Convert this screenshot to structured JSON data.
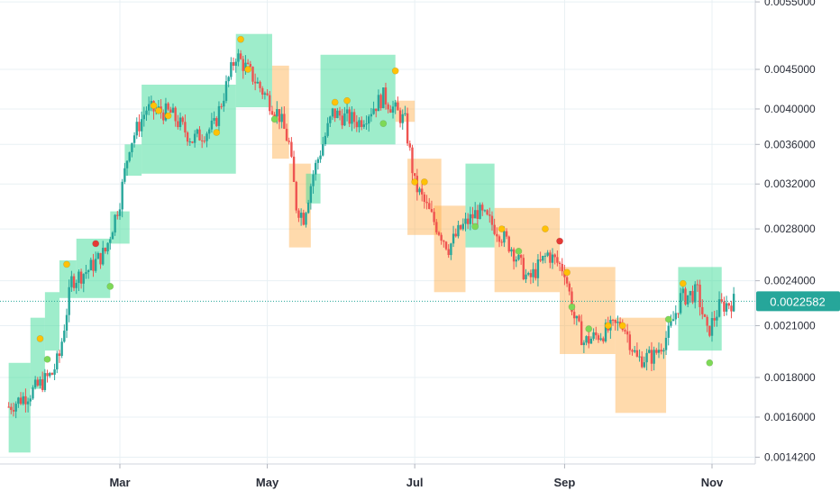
{
  "colors": {
    "up": "#26a69a",
    "down": "#ef5350",
    "green_box": "#3ddc97",
    "orange_box": "#ffad46",
    "grid": "#e8f0f4",
    "axis_text": "#2a2e39",
    "price_line": "#26a69a",
    "dot_yellow": "#ffc107",
    "dot_green": "#7ed957",
    "dot_red": "#e53935"
  },
  "chart_data": {
    "type": "candlestick",
    "x_axis": {
      "type": "date",
      "range": [
        "2020-01-15",
        "2020-11-10"
      ],
      "tick_labels": [
        {
          "label": "Mar",
          "date": "2020-03-01"
        },
        {
          "label": "May",
          "date": "2020-05-01"
        },
        {
          "label": "Jul",
          "date": "2020-07-01"
        },
        {
          "label": "Sep",
          "date": "2020-09-01"
        },
        {
          "label": "Nov",
          "date": "2020-11-01"
        }
      ]
    },
    "y_axis": {
      "scale": "log",
      "range": [
        0.00136,
        0.0055
      ],
      "tick_labels": [
        "0.0055000",
        "0.0045000",
        "0.0040000",
        "0.0036000",
        "0.0032000",
        "0.0028000",
        "0.0024000",
        "0.0021000",
        "0.0018000",
        "0.0016000",
        "0.0014200"
      ],
      "tick_values": [
        0.0055,
        0.0045,
        0.004,
        0.0036,
        0.0032,
        0.0028,
        0.0024,
        0.0021,
        0.0018,
        0.0016,
        0.00142
      ],
      "position": "right"
    },
    "grid": true,
    "last_price": {
      "label": "0.0022582",
      "value": 0.0022582
    },
    "price_path": [
      [
        "2020-01-15",
        0.00165
      ],
      [
        "2020-01-24",
        0.00172
      ],
      [
        "2020-02-02",
        0.00182
      ],
      [
        "2020-02-05",
        0.00192
      ],
      [
        "2020-02-10",
        0.0024
      ],
      [
        "2020-02-17",
        0.00248
      ],
      [
        "2020-02-24",
        0.00262
      ],
      [
        "2020-03-01",
        0.00305
      ],
      [
        "2020-03-05",
        0.0036
      ],
      [
        "2020-03-12",
        0.004
      ],
      [
        "2020-03-22",
        0.00395
      ],
      [
        "2020-03-31",
        0.00365
      ],
      [
        "2020-04-09",
        0.0038
      ],
      [
        "2020-04-18",
        0.0047
      ],
      [
        "2020-04-25",
        0.0044
      ],
      [
        "2020-05-06",
        0.00392
      ],
      [
        "2020-05-10",
        0.0036
      ],
      [
        "2020-05-13",
        0.003
      ],
      [
        "2020-05-16",
        0.0029
      ],
      [
        "2020-05-20",
        0.0033
      ],
      [
        "2020-05-28",
        0.00395
      ],
      [
        "2020-06-08",
        0.00385
      ],
      [
        "2020-06-18",
        0.00415
      ],
      [
        "2020-06-27",
        0.00385
      ],
      [
        "2020-07-01",
        0.0032
      ],
      [
        "2020-07-08",
        0.0029
      ],
      [
        "2020-07-15",
        0.00265
      ],
      [
        "2020-07-20",
        0.0028
      ],
      [
        "2020-07-27",
        0.00295
      ],
      [
        "2020-08-03",
        0.00282
      ],
      [
        "2020-08-10",
        0.00265
      ],
      [
        "2020-08-17",
        0.0024
      ],
      [
        "2020-08-25",
        0.0026
      ],
      [
        "2020-09-01",
        0.00248
      ],
      [
        "2020-09-05",
        0.00215
      ],
      [
        "2020-09-09",
        0.002
      ],
      [
        "2020-09-16",
        0.00205
      ],
      [
        "2020-09-25",
        0.00212
      ],
      [
        "2020-10-01",
        0.0019
      ],
      [
        "2020-10-08",
        0.00192
      ],
      [
        "2020-10-14",
        0.00205
      ],
      [
        "2020-10-19",
        0.00228
      ],
      [
        "2020-10-26",
        0.00232
      ],
      [
        "2020-10-30",
        0.00205
      ],
      [
        "2020-11-04",
        0.00222
      ],
      [
        "2020-11-10",
        0.0022582
      ]
    ],
    "zones": [
      {
        "kind": "green",
        "start": "2020-01-15",
        "end": "2020-01-24",
        "high": 0.00188,
        "low": 0.00144
      },
      {
        "kind": "green",
        "start": "2020-01-24",
        "end": "2020-01-30",
        "high": 0.00215,
        "low": 0.00174
      },
      {
        "kind": "green",
        "start": "2020-01-30",
        "end": "2020-02-05",
        "high": 0.00232,
        "low": 0.00195
      },
      {
        "kind": "green",
        "start": "2020-02-05",
        "end": "2020-02-12",
        "high": 0.00255,
        "low": 0.00228
      },
      {
        "kind": "green",
        "start": "2020-02-12",
        "end": "2020-02-26",
        "high": 0.00272,
        "low": 0.00228
      },
      {
        "kind": "green",
        "start": "2020-02-26",
        "end": "2020-03-05",
        "high": 0.00295,
        "low": 0.00268
      },
      {
        "kind": "green",
        "start": "2020-03-03",
        "end": "2020-03-10",
        "high": 0.0036,
        "low": 0.00328
      },
      {
        "kind": "green",
        "start": "2020-03-10",
        "end": "2020-04-18",
        "high": 0.0043,
        "low": 0.0033
      },
      {
        "kind": "green",
        "start": "2020-04-18",
        "end": "2020-05-03",
        "high": 0.005,
        "low": 0.00402
      },
      {
        "kind": "orange",
        "start": "2020-05-03",
        "end": "2020-05-10",
        "high": 0.00455,
        "low": 0.00345
      },
      {
        "kind": "orange",
        "start": "2020-05-10",
        "end": "2020-05-19",
        "high": 0.0034,
        "low": 0.00265
      },
      {
        "kind": "green",
        "start": "2020-05-17",
        "end": "2020-05-23",
        "high": 0.0033,
        "low": 0.00302
      },
      {
        "kind": "green",
        "start": "2020-05-23",
        "end": "2020-06-23",
        "high": 0.0047,
        "low": 0.0036
      },
      {
        "kind": "orange",
        "start": "2020-06-23",
        "end": "2020-07-01",
        "high": 0.0041,
        "low": 0.00385
      },
      {
        "kind": "orange",
        "start": "2020-06-28",
        "end": "2020-07-12",
        "high": 0.00345,
        "low": 0.00275
      },
      {
        "kind": "orange",
        "start": "2020-07-09",
        "end": "2020-07-22",
        "high": 0.003,
        "low": 0.00232
      },
      {
        "kind": "green",
        "start": "2020-07-22",
        "end": "2020-08-03",
        "high": 0.0034,
        "low": 0.00265
      },
      {
        "kind": "orange",
        "start": "2020-08-03",
        "end": "2020-08-30",
        "high": 0.00298,
        "low": 0.00232
      },
      {
        "kind": "orange",
        "start": "2020-08-30",
        "end": "2020-09-22",
        "high": 0.0025,
        "low": 0.00193
      },
      {
        "kind": "orange",
        "start": "2020-09-22",
        "end": "2020-10-13",
        "high": 0.00215,
        "low": 0.00162
      },
      {
        "kind": "green",
        "start": "2020-10-18",
        "end": "2020-11-05",
        "high": 0.0025,
        "low": 0.00195
      }
    ],
    "markers": [
      {
        "date": "2020-01-28",
        "value": 0.00202,
        "color": "yellow"
      },
      {
        "date": "2020-01-31",
        "value": 0.0019,
        "color": "green"
      },
      {
        "date": "2020-02-08",
        "value": 0.00252,
        "color": "yellow"
      },
      {
        "date": "2020-02-20",
        "value": 0.00268,
        "color": "red"
      },
      {
        "date": "2020-02-26",
        "value": 0.00236,
        "color": "green"
      },
      {
        "date": "2020-03-15",
        "value": 0.00404,
        "color": "yellow"
      },
      {
        "date": "2020-03-17",
        "value": 0.00398,
        "color": "yellow"
      },
      {
        "date": "2020-03-21",
        "value": 0.00392,
        "color": "yellow"
      },
      {
        "date": "2020-04-10",
        "value": 0.00373,
        "color": "yellow"
      },
      {
        "date": "2020-04-20",
        "value": 0.00492,
        "color": "yellow"
      },
      {
        "date": "2020-04-23",
        "value": 0.0045,
        "color": "yellow"
      },
      {
        "date": "2020-05-04",
        "value": 0.00388,
        "color": "green"
      },
      {
        "date": "2020-05-29",
        "value": 0.00408,
        "color": "yellow"
      },
      {
        "date": "2020-06-03",
        "value": 0.0041,
        "color": "yellow"
      },
      {
        "date": "2020-06-18",
        "value": 0.00383,
        "color": "green"
      },
      {
        "date": "2020-06-23",
        "value": 0.00448,
        "color": "yellow"
      },
      {
        "date": "2020-07-01",
        "value": 0.00322,
        "color": "yellow"
      },
      {
        "date": "2020-07-05",
        "value": 0.00322,
        "color": "yellow"
      },
      {
        "date": "2020-07-26",
        "value": 0.00282,
        "color": "green"
      },
      {
        "date": "2020-08-06",
        "value": 0.0028,
        "color": "yellow"
      },
      {
        "date": "2020-08-13",
        "value": 0.00262,
        "color": "green"
      },
      {
        "date": "2020-08-24",
        "value": 0.0028,
        "color": "yellow"
      },
      {
        "date": "2020-08-30",
        "value": 0.0027,
        "color": "red"
      },
      {
        "date": "2020-09-02",
        "value": 0.00246,
        "color": "yellow"
      },
      {
        "date": "2020-09-04",
        "value": 0.00222,
        "color": "green"
      },
      {
        "date": "2020-09-11",
        "value": 0.00208,
        "color": "green"
      },
      {
        "date": "2020-09-19",
        "value": 0.0021,
        "color": "yellow"
      },
      {
        "date": "2020-09-25",
        "value": 0.0021,
        "color": "yellow"
      },
      {
        "date": "2020-10-14",
        "value": 0.00214,
        "color": "green"
      },
      {
        "date": "2020-10-20",
        "value": 0.00238,
        "color": "yellow"
      },
      {
        "date": "2020-10-31",
        "value": 0.00188,
        "color": "green"
      }
    ]
  }
}
